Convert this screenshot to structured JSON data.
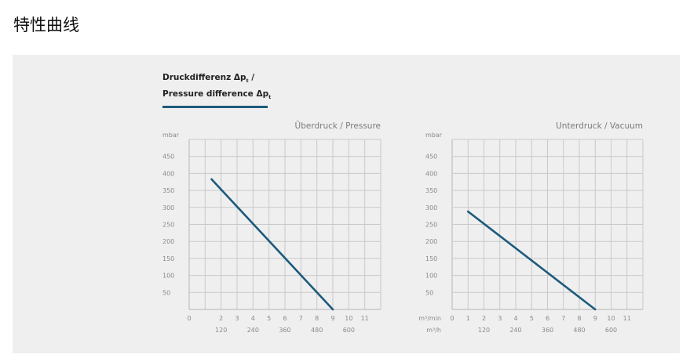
{
  "page": {
    "title": "特性曲线"
  },
  "heading": {
    "line1_text": "Druckdifferenz Δp",
    "line1_sub": "t",
    "line1_suffix": " /",
    "line2_text": "Pressure difference Δp",
    "line2_sub": "t",
    "rule_color": "#1d5a7c"
  },
  "chart_data": [
    {
      "type": "line",
      "title": "Überdruck / Pressure",
      "ylabel": "mbar",
      "y_ticks": [
        50,
        100,
        150,
        200,
        250,
        300,
        350,
        400,
        450
      ],
      "ylim": [
        0,
        500
      ],
      "x_ticks": [
        0,
        1,
        2,
        3,
        4,
        5,
        6,
        7,
        8,
        9,
        10,
        11
      ],
      "x_tick_labels": [
        "0",
        "",
        "2",
        "3",
        "4",
        "5",
        "6",
        "7",
        "8",
        "9",
        "10",
        "11"
      ],
      "xlim": [
        0,
        12
      ],
      "x2_ticks": [
        120,
        240,
        360,
        480,
        600
      ],
      "x2_per_x": 60,
      "x_unit": "",
      "x2_unit": "",
      "series": [
        {
          "color": "#1d5a7c",
          "x": [
            1.4,
            9
          ],
          "y": [
            383,
            0
          ]
        }
      ],
      "grid": true
    },
    {
      "type": "line",
      "title": "Unterdruck / Vacuum",
      "ylabel": "mbar",
      "y_ticks": [
        50,
        100,
        150,
        200,
        250,
        300,
        350,
        400,
        450
      ],
      "ylim": [
        0,
        500
      ],
      "x_ticks": [
        0,
        1,
        2,
        3,
        4,
        5,
        6,
        7,
        8,
        9,
        10,
        11
      ],
      "x_tick_labels": [
        "0",
        "1",
        "2",
        "3",
        "4",
        "5",
        "6",
        "7",
        "8",
        "9",
        "10",
        "11"
      ],
      "xlim": [
        0,
        12
      ],
      "x2_ticks": [
        120,
        240,
        360,
        480,
        600
      ],
      "x2_per_x": 60,
      "x_unit": "m³/min",
      "x2_unit": "m³/h",
      "series": [
        {
          "color": "#1d5a7c",
          "x": [
            1,
            9
          ],
          "y": [
            288,
            0
          ]
        }
      ],
      "grid": true
    }
  ]
}
